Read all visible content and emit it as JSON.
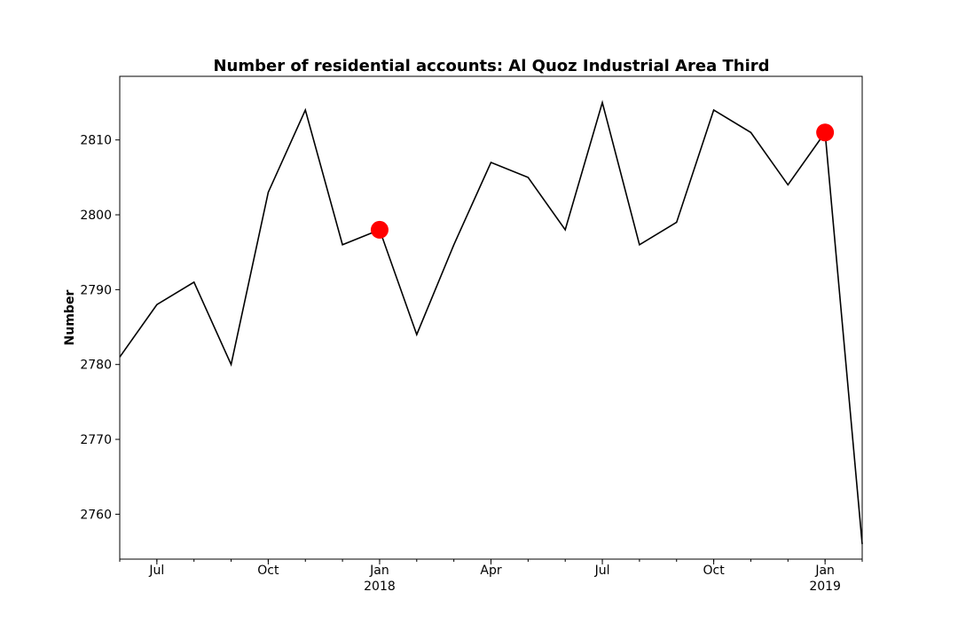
{
  "chart_data": {
    "type": "line",
    "title": "Number of residential accounts: Al Quoz Industrial Area Third",
    "xlabel": "",
    "ylabel": "Number",
    "x": [
      "2017-06",
      "2017-07",
      "2017-08",
      "2017-09",
      "2017-10",
      "2017-11",
      "2017-12",
      "2018-01",
      "2018-02",
      "2018-03",
      "2018-04",
      "2018-05",
      "2018-06",
      "2018-07",
      "2018-08",
      "2018-09",
      "2018-10",
      "2018-11",
      "2018-12",
      "2019-01",
      "2019-02"
    ],
    "series": [
      {
        "values": [
          2781,
          2788,
          2791,
          2780,
          2803,
          2814,
          2796,
          2798,
          2784,
          2796,
          2807,
          2805,
          2798,
          2815,
          2796,
          2799,
          2814,
          2811,
          2804,
          2811,
          2756
        ]
      }
    ],
    "highlight_points": [
      {
        "x": "2018-01",
        "y": 2798
      },
      {
        "x": "2019-01",
        "y": 2811
      }
    ],
    "ylim": [
      2754,
      2818.5
    ],
    "y_ticks": [
      2760,
      2770,
      2780,
      2790,
      2800,
      2810
    ],
    "x_major_ticks": [
      {
        "x": "2017-07",
        "label": "Jul",
        "sublabel": ""
      },
      {
        "x": "2017-10",
        "label": "Oct",
        "sublabel": ""
      },
      {
        "x": "2018-01",
        "label": "Jan",
        "sublabel": "2018"
      },
      {
        "x": "2018-04",
        "label": "Apr",
        "sublabel": ""
      },
      {
        "x": "2018-07",
        "label": "Jul",
        "sublabel": ""
      },
      {
        "x": "2018-10",
        "label": "Oct",
        "sublabel": ""
      },
      {
        "x": "2019-01",
        "label": "Jan",
        "sublabel": "2019"
      }
    ],
    "grid": false,
    "line_color": "#000000",
    "highlight_color": "#ff0000"
  }
}
